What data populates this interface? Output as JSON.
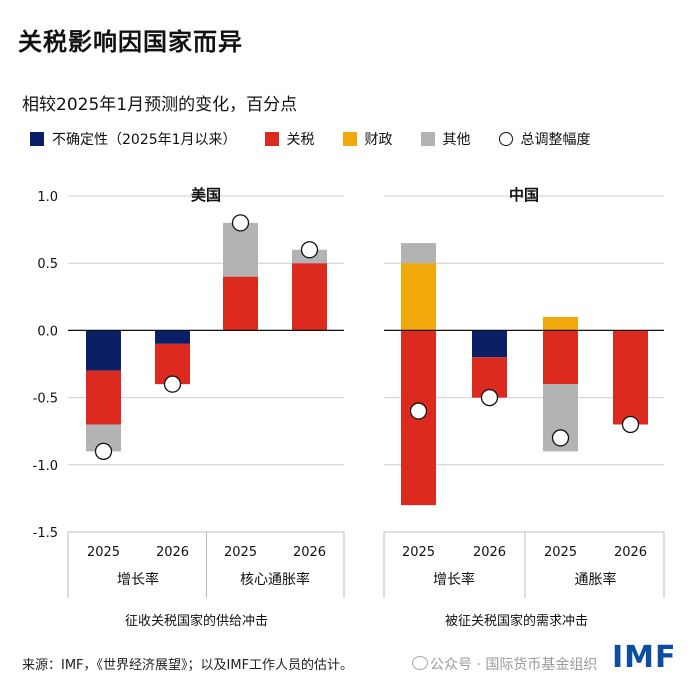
{
  "chart_data": {
    "type": "bar",
    "title": "关税影响因国家而异",
    "subtitle": "相较2025年1月预测的变化，百分点",
    "legend": [
      {
        "name": "不确定性（2025年1月以来）",
        "color": "#0b1f66",
        "kind": "bar"
      },
      {
        "name": "关税",
        "color": "#dd2a1e",
        "kind": "bar"
      },
      {
        "name": "财政",
        "color": "#f0a80a",
        "kind": "bar"
      },
      {
        "name": "其他",
        "color": "#b3b3b3",
        "kind": "bar"
      },
      {
        "name": "总调整幅度",
        "kind": "marker"
      }
    ],
    "ylim": [
      -1.5,
      1.0
    ],
    "yticks": [
      {
        "value": 1.0,
        "label": "1.0"
      },
      {
        "value": 0.5,
        "label": "0.5"
      },
      {
        "value": 0.0,
        "label": "0.0"
      },
      {
        "value": -0.5,
        "label": "-0.5"
      },
      {
        "value": -1.0,
        "label": "-1.0"
      },
      {
        "value": -1.5,
        "label": "-1.5"
      }
    ],
    "series_names": [
      "不确定性（2025年1月以来）",
      "关税",
      "财政",
      "其他"
    ],
    "panels": [
      {
        "name": "美国",
        "caption": "征收关税国家的供给冲击",
        "groups": [
          {
            "label": "增长率",
            "bars": [
              {
                "year": "2025",
                "segments": [
                  {
                    "series": "不确定性（2025年1月以来）",
                    "value": -0.3
                  },
                  {
                    "series": "关税",
                    "value": -0.4
                  },
                  {
                    "series": "其他",
                    "value": -0.2
                  }
                ],
                "total": -0.9
              },
              {
                "year": "2026",
                "segments": [
                  {
                    "series": "不确定性（2025年1月以来）",
                    "value": -0.1
                  },
                  {
                    "series": "关税",
                    "value": -0.3
                  }
                ],
                "total": -0.4
              }
            ]
          },
          {
            "label": "核心通胀率",
            "bars": [
              {
                "year": "2025",
                "segments": [
                  {
                    "series": "关税",
                    "value": 0.4
                  },
                  {
                    "series": "其他",
                    "value": 0.4
                  }
                ],
                "total": 0.8
              },
              {
                "year": "2026",
                "segments": [
                  {
                    "series": "关税",
                    "value": 0.5
                  },
                  {
                    "series": "其他",
                    "value": 0.1
                  }
                ],
                "total": 0.6
              }
            ]
          }
        ]
      },
      {
        "name": "中国",
        "caption": "被征关税国家的需求冲击",
        "groups": [
          {
            "label": "增长率",
            "bars": [
              {
                "year": "2025",
                "segments": [
                  {
                    "series": "财政",
                    "value": 0.5
                  },
                  {
                    "series": "其他",
                    "value": 0.15
                  },
                  {
                    "series": "关税",
                    "value": -1.3
                  }
                ],
                "total": -0.6
              },
              {
                "year": "2026",
                "segments": [
                  {
                    "series": "不确定性（2025年1月以来）",
                    "value": -0.2
                  },
                  {
                    "series": "关税",
                    "value": -0.3
                  }
                ],
                "total": -0.5
              }
            ]
          },
          {
            "label": "通胀率",
            "bars": [
              {
                "year": "2025",
                "segments": [
                  {
                    "series": "财政",
                    "value": 0.1
                  },
                  {
                    "series": "关税",
                    "value": -0.4
                  },
                  {
                    "series": "其他",
                    "value": -0.5
                  }
                ],
                "total": -0.8
              },
              {
                "year": "2026",
                "segments": [
                  {
                    "series": "关税",
                    "value": -0.7
                  }
                ],
                "total": -0.7
              }
            ]
          }
        ]
      }
    ],
    "grid": true
  },
  "source": "来源：IMF，《世界经济展望》；以及IMF工作人员的估计。",
  "watermark": "公众号 · 国际货币基金组织",
  "logo": "IMF"
}
